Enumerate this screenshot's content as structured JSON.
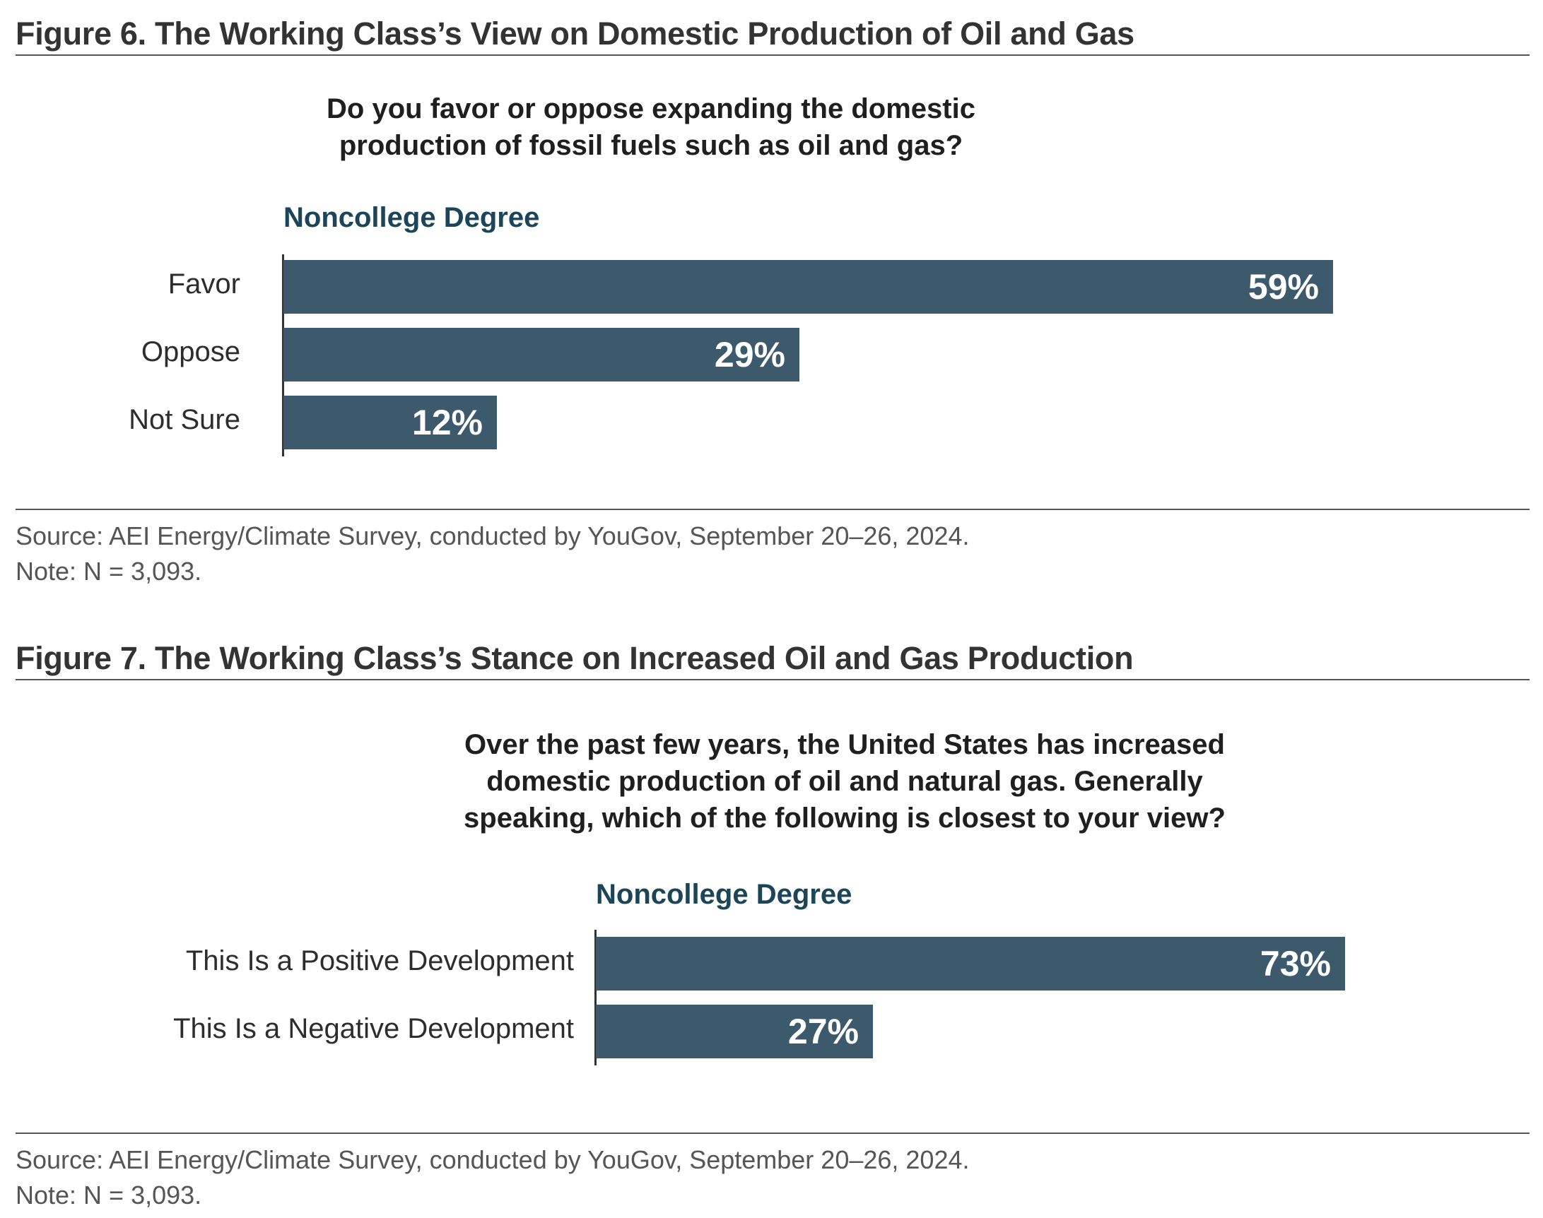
{
  "figures": [
    {
      "title": "Figure 6. The Working Class’s View on Domestic Production of Oil and Gas",
      "question": [
        "Do you favor or oppose expanding the domestic",
        "production of fossil fuels such as oil and gas?"
      ],
      "group": "Noncollege Degree",
      "source": "Source: AEI Energy/Climate Survey, conducted by YouGov, September 20–26, 2024.",
      "note": "Note: N = 3,093."
    },
    {
      "title": "Figure 7. The Working Class’s Stance on Increased Oil and Gas Production",
      "question": [
        "Over the past few years, the United States has increased",
        "domestic production of oil and natural gas. Generally",
        "speaking, which of the following is closest to your view?"
      ],
      "group": "Noncollege Degree",
      "source": "Source: AEI Energy/Climate Survey, conducted by YouGov, September 20–26, 2024.",
      "note": "Note: N = 3,093."
    }
  ],
  "chart_data": [
    {
      "type": "bar",
      "orientation": "horizontal",
      "title": "Figure 6. The Working Class’s View on Domestic Production of Oil and Gas",
      "subtitle": "Do you favor or oppose expanding the domestic production of fossil fuels such as oil and gas?",
      "categories": [
        "Favor",
        "Oppose",
        "Not Sure"
      ],
      "series": [
        {
          "name": "Noncollege Degree",
          "values": [
            59,
            29,
            12
          ]
        }
      ],
      "value_labels": [
        "59%",
        "29%",
        "12%"
      ],
      "unit": "%",
      "xlim": [
        0,
        59
      ],
      "grid": false
    },
    {
      "type": "bar",
      "orientation": "horizontal",
      "title": "Figure 7. The Working Class’s Stance on Increased Oil and Gas Production",
      "subtitle": "Over the past few years, the United States has increased domestic production of oil and natural gas. Generally speaking, which of the following is closest to your view?",
      "categories": [
        "This Is a Positive Development",
        "This Is a Negative Development"
      ],
      "series": [
        {
          "name": "Noncollege Degree",
          "values": [
            73,
            27
          ]
        }
      ],
      "value_labels": [
        "73%",
        "27%"
      ],
      "unit": "%",
      "xlim": [
        0,
        73
      ],
      "grid": false
    }
  ]
}
